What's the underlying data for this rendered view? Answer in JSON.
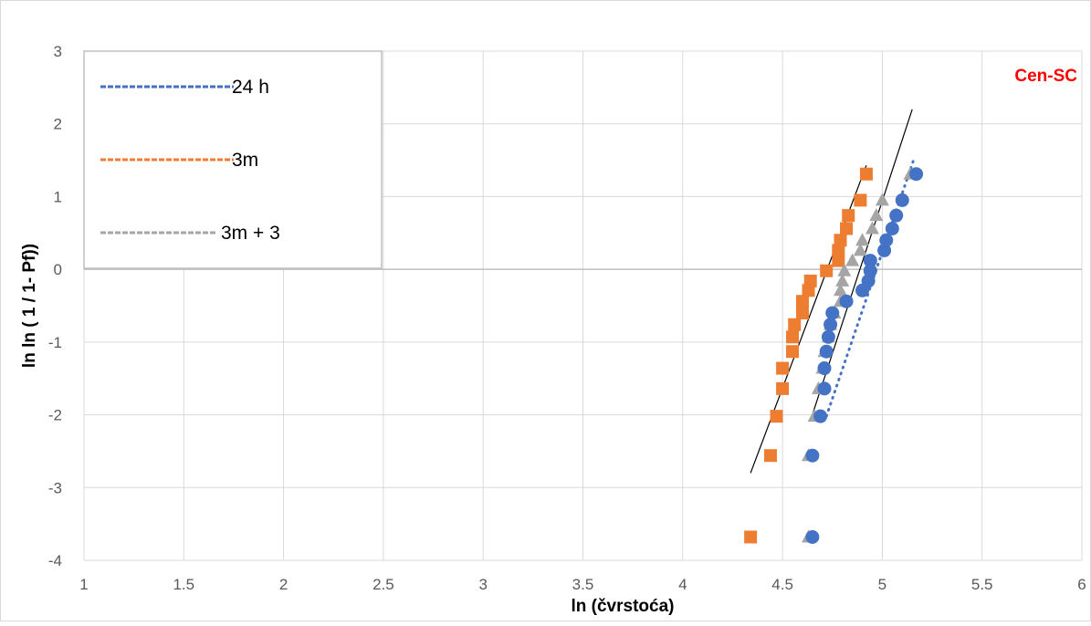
{
  "chart_data": {
    "type": "scatter",
    "title": "",
    "annotation": {
      "text": "Cen-SC",
      "color": "#ff0000"
    },
    "xlabel": "ln (čvrstoća)",
    "ylabel": "ln ln ( 1 / 1- Pf))",
    "xlim": [
      1,
      6
    ],
    "ylim": [
      -4,
      3
    ],
    "x_ticks": [
      "1",
      "1.5",
      "2",
      "2.5",
      "3",
      "3.5",
      "4",
      "4.5",
      "5",
      "5.5",
      "6"
    ],
    "y_ticks": [
      "3",
      "2",
      "1",
      "0",
      "-1",
      "-2",
      "-3",
      "-4"
    ],
    "grid": true,
    "legend_position": "top-left",
    "series": [
      {
        "name": "24 h",
        "marker": "circle",
        "color": "#4472c4",
        "points": [
          [
            4.65,
            -3.68
          ],
          [
            4.65,
            -2.56
          ],
          [
            4.69,
            -2.02
          ],
          [
            4.71,
            -1.64
          ],
          [
            4.71,
            -1.36
          ],
          [
            4.72,
            -1.13
          ],
          [
            4.73,
            -0.93
          ],
          [
            4.74,
            -0.76
          ],
          [
            4.75,
            -0.6
          ],
          [
            4.82,
            -0.44
          ],
          [
            4.9,
            -0.29
          ],
          [
            4.93,
            -0.16
          ],
          [
            4.94,
            -0.02
          ],
          [
            4.94,
            0.12
          ],
          [
            5.01,
            0.26
          ],
          [
            5.02,
            0.4
          ],
          [
            5.05,
            0.56
          ],
          [
            5.07,
            0.74
          ],
          [
            5.1,
            0.95
          ],
          [
            5.17,
            1.31
          ]
        ],
        "trendline": {
          "style": "dotted",
          "from": [
            4.72,
            -2.02
          ],
          "to": [
            5.16,
            1.53
          ]
        }
      },
      {
        "name": "3m",
        "marker": "square",
        "color": "#ed7d31",
        "points": [
          [
            4.34,
            -3.68
          ],
          [
            4.44,
            -2.56
          ],
          [
            4.47,
            -2.02
          ],
          [
            4.5,
            -1.64
          ],
          [
            4.5,
            -1.36
          ],
          [
            4.55,
            -1.13
          ],
          [
            4.55,
            -0.93
          ],
          [
            4.56,
            -0.76
          ],
          [
            4.6,
            -0.6
          ],
          [
            4.6,
            -0.44
          ],
          [
            4.63,
            -0.29
          ],
          [
            4.64,
            -0.16
          ],
          [
            4.72,
            -0.02
          ],
          [
            4.78,
            0.12
          ],
          [
            4.78,
            0.26
          ],
          [
            4.79,
            0.4
          ],
          [
            4.82,
            0.56
          ],
          [
            4.83,
            0.74
          ],
          [
            4.89,
            0.95
          ],
          [
            4.92,
            1.31
          ]
        ],
        "trendline": {
          "style": "solid",
          "from": [
            4.34,
            -2.8
          ],
          "to": [
            4.92,
            1.43
          ]
        }
      },
      {
        "name": "3m + 3",
        "marker": "triangle",
        "color": "#a5a5a5",
        "points": [
          [
            4.63,
            -3.68
          ],
          [
            4.63,
            -2.56
          ],
          [
            4.66,
            -2.02
          ],
          [
            4.68,
            -1.64
          ],
          [
            4.7,
            -1.36
          ],
          [
            4.71,
            -1.13
          ],
          [
            4.73,
            -0.93
          ],
          [
            4.74,
            -0.76
          ],
          [
            4.76,
            -0.6
          ],
          [
            4.79,
            -0.44
          ],
          [
            4.79,
            -0.29
          ],
          [
            4.8,
            -0.16
          ],
          [
            4.81,
            -0.02
          ],
          [
            4.85,
            0.12
          ],
          [
            4.89,
            0.26
          ],
          [
            4.9,
            0.4
          ],
          [
            4.95,
            0.56
          ],
          [
            4.97,
            0.74
          ],
          [
            5.0,
            0.95
          ],
          [
            5.14,
            1.31
          ]
        ],
        "trendline": {
          "style": "solid",
          "from": [
            4.64,
            -2.08
          ],
          "to": [
            5.15,
            2.2
          ]
        }
      }
    ]
  }
}
